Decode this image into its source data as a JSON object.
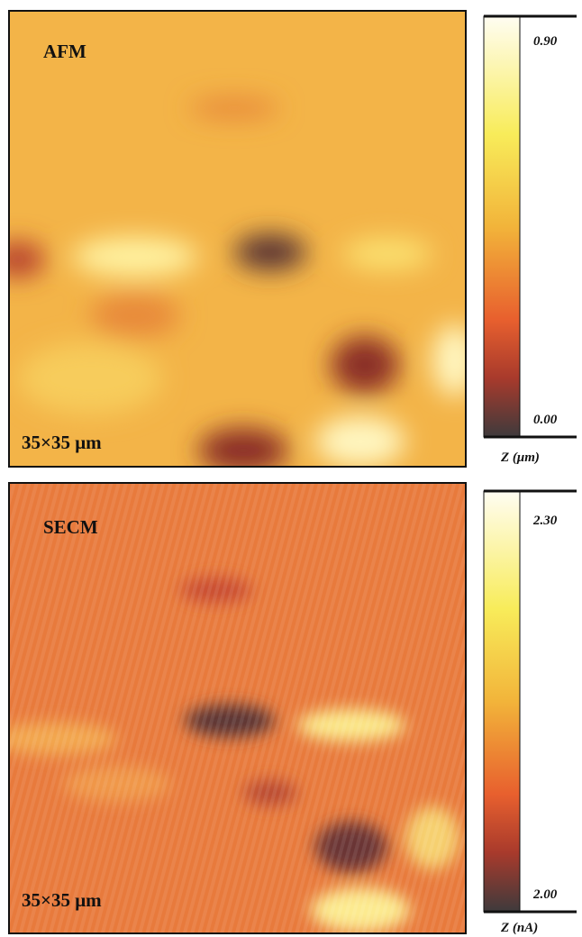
{
  "panels": [
    {
      "label": "AFM",
      "scale": "35×35 μm",
      "colorbar": {
        "max": "0.90",
        "min": "0.00",
        "unit": "Z (μm)"
      }
    },
    {
      "label": "SECM",
      "scale": "35×35 μm",
      "colorbar": {
        "max": "2.30",
        "min": "2.00",
        "unit": "Z (nA)"
      }
    }
  ]
}
